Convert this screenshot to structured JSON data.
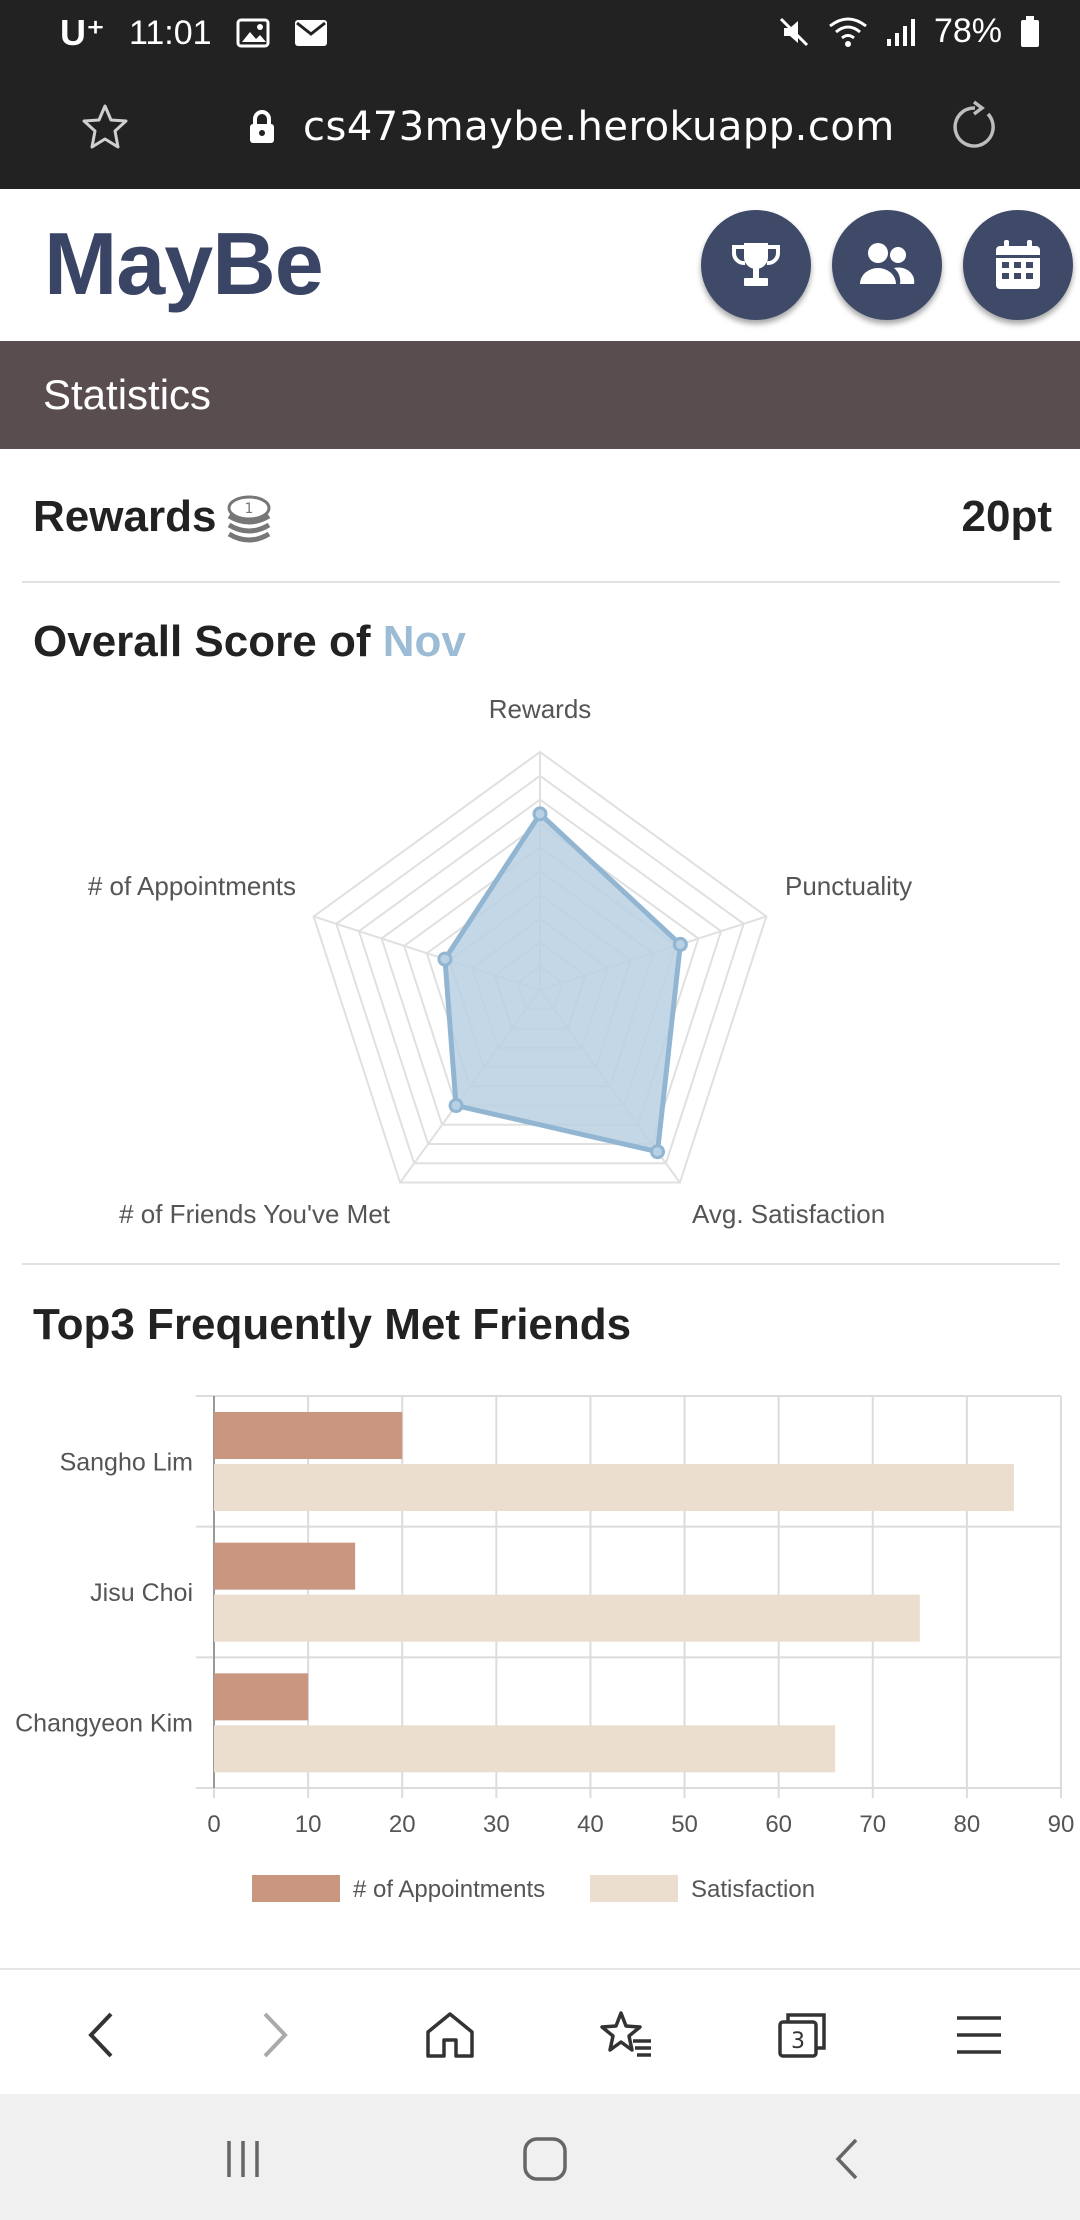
{
  "status_bar": {
    "carrier": "U⁺",
    "time": "11:01",
    "battery": "78%"
  },
  "browser": {
    "url": "cs473maybe.herokuapp.com"
  },
  "header": {
    "logo": "MayBe"
  },
  "section": {
    "title": "Statistics"
  },
  "rewards": {
    "label": "Rewards",
    "value": "20pt"
  },
  "overall": {
    "title_prefix": "Overall Score of",
    "month": "Nov"
  },
  "top3": {
    "title": "Top3 Frequently Met Friends"
  },
  "colors": {
    "radar_fill": "#b8d0e3",
    "radar_stroke": "#92b6d2",
    "appointments": "#c99680",
    "satisfaction": "#ecdece",
    "brand": "#3a4566"
  },
  "chart_data": [
    {
      "type": "radar",
      "axes": [
        "Rewards",
        "Punctuality",
        "Avg. Satisfaction",
        "# of Friends You've Met",
        "# of Appointments"
      ],
      "values": [
        0.74,
        0.62,
        0.84,
        0.6,
        0.42
      ],
      "range": [
        0,
        1
      ],
      "rings": 10
    },
    {
      "type": "bar",
      "orientation": "horizontal",
      "categories": [
        "Sangho Lim",
        "Jisu Choi",
        "Changyeon Kim"
      ],
      "series": [
        {
          "name": "# of Appointments",
          "values": [
            20,
            15,
            10
          ]
        },
        {
          "name": "Satisfaction",
          "values": [
            85,
            75,
            66
          ]
        }
      ],
      "xlim": [
        0,
        90
      ],
      "xticks": [
        "0",
        "10",
        "20",
        "30",
        "40",
        "50",
        "60",
        "70",
        "80",
        "90"
      ],
      "legend": "bottom",
      "grid": true
    }
  ]
}
